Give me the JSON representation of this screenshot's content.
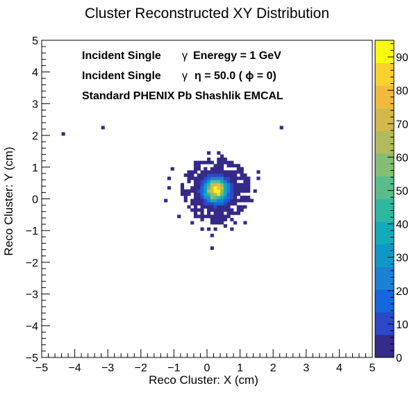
{
  "chart_data": {
    "type": "heatmap",
    "title": "Cluster Reconstructed XY Distribution",
    "xlabel": "Reco Cluster: X (cm)",
    "ylabel": "Reco Cluster: Y (cm)",
    "xlim": [
      -5,
      5
    ],
    "ylim": [
      -5,
      5
    ],
    "x_ticks": [
      "−5",
      "−4",
      "−3",
      "−2",
      "−1",
      "0",
      "1",
      "2",
      "3",
      "4",
      "5"
    ],
    "y_ticks": [
      "−5",
      "−4",
      "−3",
      "−2",
      "−1",
      "0",
      "1",
      "2",
      "3",
      "4",
      "5"
    ],
    "colorbar": {
      "min": 0,
      "max": 95,
      "ticks": [
        0,
        10,
        20,
        30,
        40,
        50,
        60,
        70,
        80,
        90
      ],
      "palette": [
        "#352a87",
        "#2b48c8",
        "#1467dd",
        "#1a82d4",
        "#0e98c9",
        "#14aab8",
        "#30b7a1",
        "#58bd8a",
        "#85be72",
        "#b0bc5c",
        "#d4b94a",
        "#f2ba3d",
        "#fcd12e",
        "#f9fb0e"
      ]
    },
    "bin_size": 0.1,
    "annotations": [
      {
        "prefix": "Incident Single",
        "symbol": "γ",
        "rest": "Eneregy = 1 GeV"
      },
      {
        "prefix": "Incident Single",
        "symbol": "γ",
        "rest": "η = 50.0 ( ϕ = 0)"
      },
      {
        "prefix": "Standard PHENIX Pb Shashlik EMCAL",
        "symbol": "",
        "rest": ""
      }
    ],
    "core": {
      "center_x": 0.27,
      "center_y": 0.28,
      "peak": 95,
      "sigma": 0.23
    },
    "outlier_bins": [
      {
        "x": -4.35,
        "y": 2.05,
        "value": 1
      },
      {
        "x": -3.15,
        "y": 2.25,
        "value": 1
      },
      {
        "x": 2.25,
        "y": 2.25,
        "value": 1
      },
      {
        "x": 0.15,
        "y": -1.55,
        "value": 1
      },
      {
        "x": 0.15,
        "y": -1.15,
        "value": 1
      },
      {
        "x": -0.15,
        "y": -0.95,
        "value": 1
      },
      {
        "x": 0.05,
        "y": -0.95,
        "value": 1
      },
      {
        "x": 0.25,
        "y": -0.95,
        "value": 1
      },
      {
        "x": 0.75,
        "y": -0.95,
        "value": 1
      },
      {
        "x": 0.55,
        "y": -0.85,
        "value": 1
      },
      {
        "x": 0.85,
        "y": -0.75,
        "value": 1
      },
      {
        "x": 1.15,
        "y": -0.75,
        "value": 1
      },
      {
        "x": -0.45,
        "y": -0.75,
        "value": 1
      },
      {
        "x": -0.85,
        "y": -0.55,
        "value": 1
      },
      {
        "x": 0.95,
        "y": -0.45,
        "value": 1
      },
      {
        "x": -1.25,
        "y": -0.05,
        "value": 1
      },
      {
        "x": -1.15,
        "y": 0.35,
        "value": 1
      },
      {
        "x": -1.15,
        "y": 0.65,
        "value": 1
      },
      {
        "x": -1.05,
        "y": 0.95,
        "value": 1
      },
      {
        "x": 1.25,
        "y": 0.65,
        "value": 1
      },
      {
        "x": 1.55,
        "y": 0.85,
        "value": 1
      },
      {
        "x": 1.55,
        "y": 0.65,
        "value": 1
      },
      {
        "x": 1.45,
        "y": 0.25,
        "value": 1
      },
      {
        "x": 1.35,
        "y": -0.05,
        "value": 1
      },
      {
        "x": 0.45,
        "y": 1.35,
        "value": 1
      },
      {
        "x": 0.05,
        "y": 1.45,
        "value": 1
      },
      {
        "x": 0.35,
        "y": 1.45,
        "value": 1
      },
      {
        "x": -0.35,
        "y": 1.15,
        "value": 1
      },
      {
        "x": 0.85,
        "y": 1.05,
        "value": 1
      },
      {
        "x": 1.05,
        "y": 0.95,
        "value": 1
      }
    ]
  }
}
